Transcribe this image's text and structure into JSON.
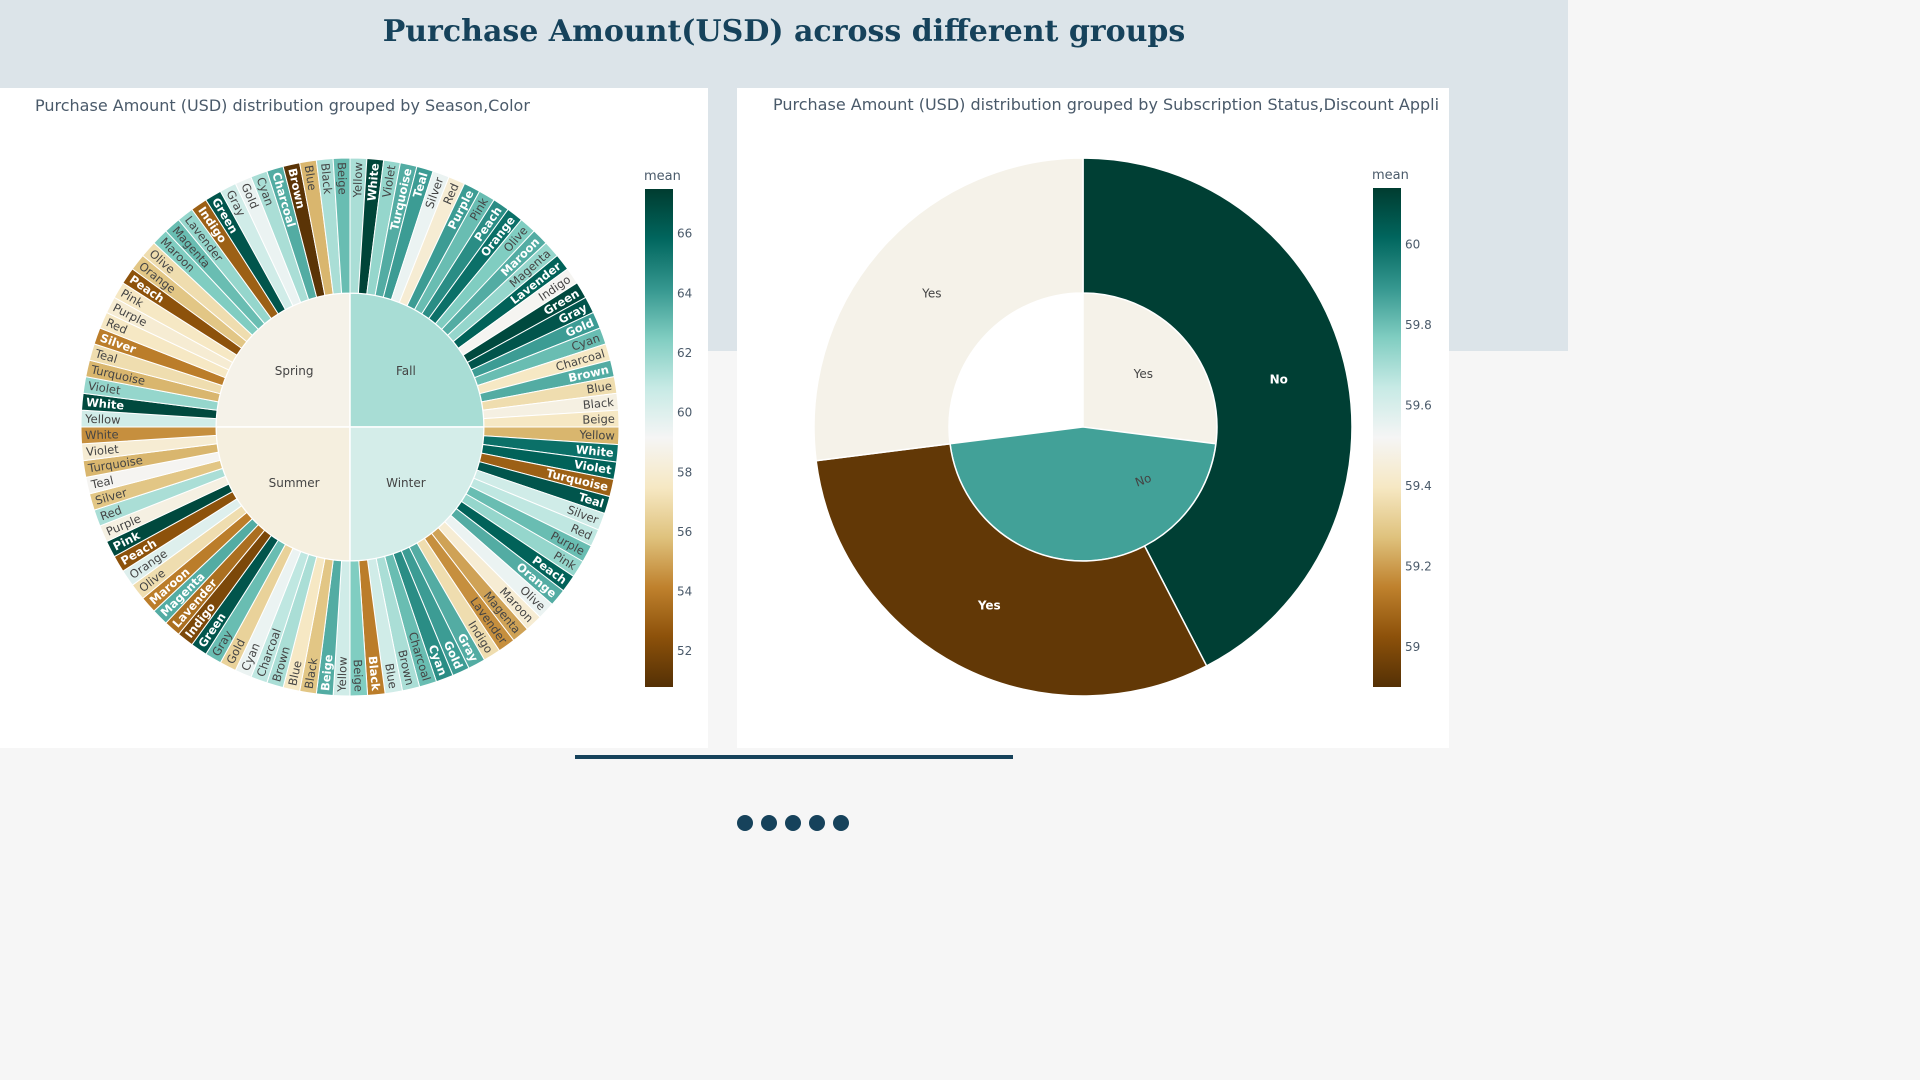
{
  "page": {
    "title": "Purchase Amount(USD) across different groups",
    "colors": {
      "band": "#dce4e9",
      "title": "#16425b",
      "accent": "#16425b"
    },
    "pagination_dots": 5
  },
  "chart_data": [
    {
      "type": "sunburst",
      "title": "Purchase Amount (USD) distribution grouped by Season,Color",
      "colorbar": {
        "title": "mean",
        "ticks": [
          52,
          54,
          56,
          58,
          60,
          62,
          64,
          66
        ],
        "range": [
          50.8,
          67.5
        ],
        "colorscale": "BrBG"
      },
      "inner": [
        {
          "name": "Spring",
          "value": 58.74
        },
        {
          "name": "Fall",
          "value": 61.56
        },
        {
          "name": "Summer",
          "value": 58.41
        },
        {
          "name": "Winter",
          "value": 60.36
        }
      ],
      "outer": {
        "Fall": [
          {
            "name": "Yellow",
            "value": 61.5
          },
          {
            "name": "White",
            "value": 67.2
          },
          {
            "name": "Violet",
            "value": 62
          },
          {
            "name": "Turquoise",
            "value": 63.5
          },
          {
            "name": "Teal",
            "value": 64
          },
          {
            "name": "Silver",
            "value": 59.5
          },
          {
            "name": "Red",
            "value": 58
          },
          {
            "name": "Purple",
            "value": 64
          },
          {
            "name": "Pink",
            "value": 63
          },
          {
            "name": "Peach",
            "value": 64.5
          },
          {
            "name": "Orange",
            "value": 65.5
          },
          {
            "name": "Olive",
            "value": 62.5
          },
          {
            "name": "Maroon",
            "value": 63.5
          },
          {
            "name": "Magenta",
            "value": 62
          },
          {
            "name": "Lavender",
            "value": 66
          },
          {
            "name": "Indigo",
            "value": 59
          },
          {
            "name": "Green",
            "value": 67
          },
          {
            "name": "Gray",
            "value": 66.5
          },
          {
            "name": "Gold",
            "value": 64
          },
          {
            "name": "Cyan",
            "value": 63
          },
          {
            "name": "Charcoal",
            "value": 57.5
          },
          {
            "name": "Brown",
            "value": 63.5
          },
          {
            "name": "Blue",
            "value": 57
          },
          {
            "name": "Black",
            "value": 58.5
          },
          {
            "name": "Beige",
            "value": 57.5
          }
        ],
        "Winter": [
          {
            "name": "Yellow",
            "value": 55.5
          },
          {
            "name": "White",
            "value": 65.5
          },
          {
            "name": "Violet",
            "value": 66
          },
          {
            "name": "Turquoise",
            "value": 53
          },
          {
            "name": "Teal",
            "value": 66.5
          },
          {
            "name": "Silver",
            "value": 60.5
          },
          {
            "name": "Red",
            "value": 61
          },
          {
            "name": "Purple",
            "value": 63
          },
          {
            "name": "Pink",
            "value": 62
          },
          {
            "name": "Peach",
            "value": 66
          },
          {
            "name": "Orange",
            "value": 63.5
          },
          {
            "name": "Olive",
            "value": 59.5
          },
          {
            "name": "Maroon",
            "value": 58
          },
          {
            "name": "Magenta",
            "value": 55
          },
          {
            "name": "Lavender",
            "value": 54.5
          },
          {
            "name": "Indigo",
            "value": 57
          },
          {
            "name": "Gray",
            "value": 63.5
          },
          {
            "name": "Gold",
            "value": 64
          },
          {
            "name": "Cyan",
            "value": 64.5
          },
          {
            "name": "Charcoal",
            "value": 63
          },
          {
            "name": "Brown",
            "value": 61.5
          },
          {
            "name": "Blue",
            "value": 60.5
          },
          {
            "name": "Black",
            "value": 54
          },
          {
            "name": "Beige",
            "value": 62.5
          }
        ],
        "Summer": [
          {
            "name": "Yellow",
            "value": 60.5
          },
          {
            "name": "Beige",
            "value": 63.5
          },
          {
            "name": "Black",
            "value": 56
          },
          {
            "name": "Blue",
            "value": 57.5
          },
          {
            "name": "Brown",
            "value": 61.5
          },
          {
            "name": "Charcoal",
            "value": 61
          },
          {
            "name": "Cyan",
            "value": 59.5
          },
          {
            "name": "Gold",
            "value": 56.5
          },
          {
            "name": "Gray",
            "value": 63
          },
          {
            "name": "Green",
            "value": 66.5
          },
          {
            "name": "Indigo",
            "value": 52
          },
          {
            "name": "Lavender",
            "value": 53.5
          },
          {
            "name": "Magenta",
            "value": 63.5
          },
          {
            "name": "Maroon",
            "value": 54
          },
          {
            "name": "Olive",
            "value": 57
          },
          {
            "name": "Orange",
            "value": 60
          },
          {
            "name": "Peach",
            "value": 52.5
          },
          {
            "name": "Pink",
            "value": 67
          },
          {
            "name": "Purple",
            "value": 58.5
          },
          {
            "name": "Red",
            "value": 61.5
          },
          {
            "name": "Silver",
            "value": 56
          },
          {
            "name": "Teal",
            "value": 59
          },
          {
            "name": "Turquoise",
            "value": 55.5
          },
          {
            "name": "Violet",
            "value": 58
          },
          {
            "name": "White",
            "value": 54.5
          }
        ],
        "Spring": [
          {
            "name": "Yellow",
            "value": 60.5
          },
          {
            "name": "White",
            "value": 67
          },
          {
            "name": "Violet",
            "value": 62
          },
          {
            "name": "Turquoise",
            "value": 55.5
          },
          {
            "name": "Teal",
            "value": 57
          },
          {
            "name": "Silver",
            "value": 54
          },
          {
            "name": "Red",
            "value": 57.5
          },
          {
            "name": "Purple",
            "value": 58
          },
          {
            "name": "Pink",
            "value": 57.5
          },
          {
            "name": "Peach",
            "value": 52.5
          },
          {
            "name": "Orange",
            "value": 56
          },
          {
            "name": "Olive",
            "value": 57
          },
          {
            "name": "Maroon",
            "value": 62.5
          },
          {
            "name": "Magenta",
            "value": 63
          },
          {
            "name": "Lavender",
            "value": 62
          },
          {
            "name": "Indigo",
            "value": 53
          },
          {
            "name": "Green",
            "value": 66.5
          },
          {
            "name": "Gray",
            "value": 60.5
          },
          {
            "name": "Gold",
            "value": 59.5
          },
          {
            "name": "Cyan",
            "value": 61.5
          },
          {
            "name": "Charcoal",
            "value": 63.5
          },
          {
            "name": "Brown",
            "value": 51
          },
          {
            "name": "Blue",
            "value": 55.5
          },
          {
            "name": "Black",
            "value": 61.5
          },
          {
            "name": "Beige",
            "value": 63
          }
        ]
      }
    },
    {
      "type": "sunburst",
      "title": "Purchase Amount (USD) distribution grouped by Subscription Status,Discount Appli",
      "colorbar": {
        "title": "mean",
        "ticks": [
          59,
          59.2,
          59.4,
          59.6,
          59.8,
          60
        ],
        "range": [
          58.9,
          60.14
        ],
        "colorscale": "BrBG"
      },
      "inner": [
        {
          "name": "No",
          "value": 59.87,
          "share": 0.73
        },
        {
          "name": "Yes",
          "value": 59.49,
          "share": 0.27
        }
      ],
      "outer": [
        {
          "parent": "No",
          "name": "No",
          "value": 60.13,
          "share": 0.424
        },
        {
          "parent": "No",
          "name": "Yes",
          "value": 58.93,
          "share": 0.306
        },
        {
          "parent": "Yes",
          "name": "Yes",
          "value": 59.49,
          "share": 0.27
        }
      ]
    }
  ]
}
